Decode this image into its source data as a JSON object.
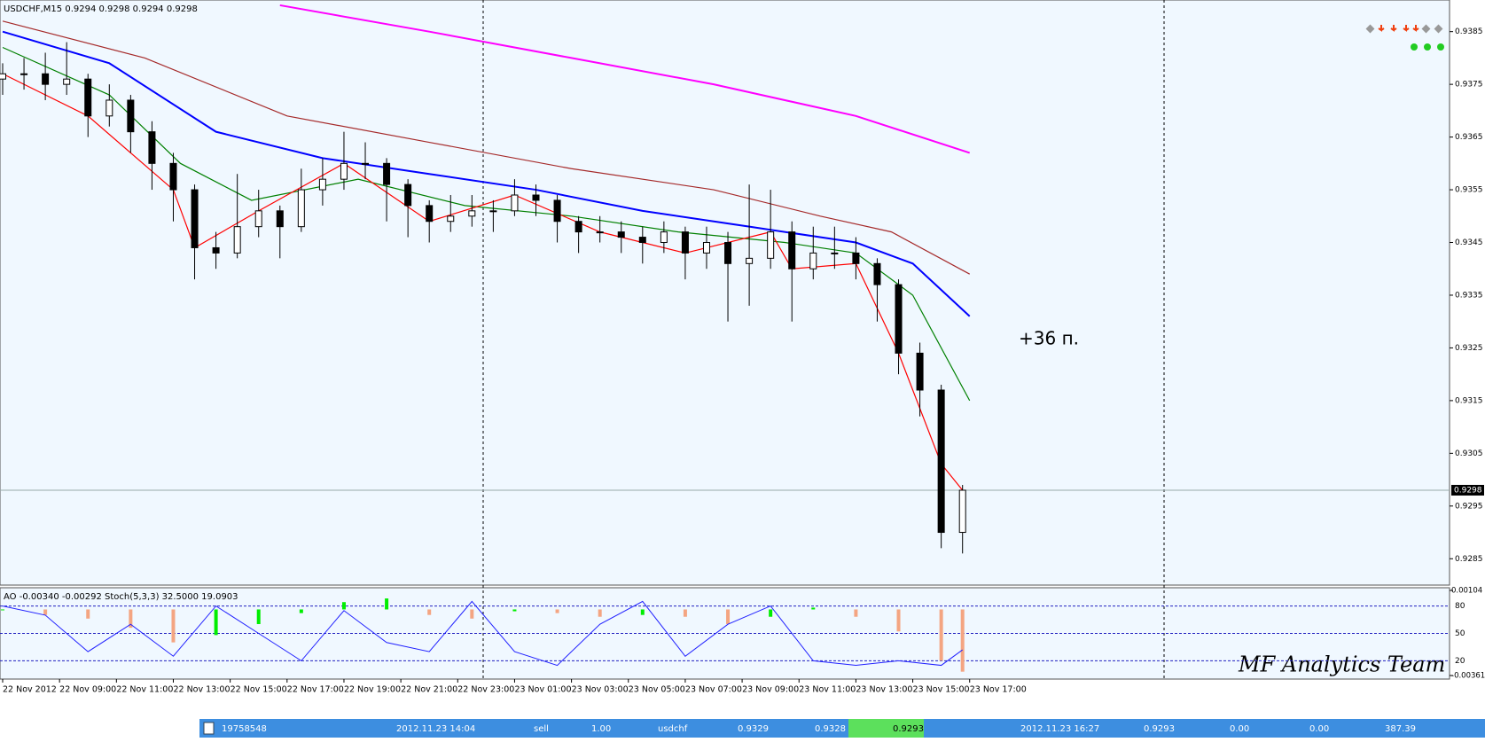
{
  "chart_data": [
    {
      "type": "candlestick",
      "title": "USDCHF,M15  0.9294 0.9298 0.9294 0.9298",
      "x": [
        "22 Nov 07:00",
        "22 Nov 07:45",
        "22 Nov 08:30",
        "22 Nov 09:15",
        "22 Nov 10:00",
        "22 Nov 10:45",
        "22 Nov 11:30",
        "22 Nov 12:15",
        "22 Nov 13:00",
        "22 Nov 13:45",
        "22 Nov 14:30",
        "22 Nov 15:15",
        "22 Nov 16:00",
        "22 Nov 16:45",
        "22 Nov 17:30",
        "22 Nov 18:15",
        "22 Nov 19:00",
        "22 Nov 19:45",
        "22 Nov 20:30",
        "22 Nov 21:15",
        "22 Nov 22:00",
        "22 Nov 22:45",
        "22 Nov 23:30",
        "23 Nov 00:15",
        "23 Nov 01:00",
        "23 Nov 01:45",
        "23 Nov 02:30",
        "23 Nov 03:15",
        "23 Nov 04:00",
        "23 Nov 04:45",
        "23 Nov 05:30",
        "23 Nov 06:15",
        "23 Nov 07:00",
        "23 Nov 07:45",
        "23 Nov 08:30",
        "23 Nov 09:15",
        "23 Nov 10:00",
        "23 Nov 10:45",
        "23 Nov 11:30",
        "23 Nov 12:15",
        "23 Nov 13:00",
        "23 Nov 13:45",
        "23 Nov 14:30",
        "23 Nov 15:15",
        "23 Nov 16:00",
        "23 Nov 16:45"
      ],
      "open": [
        0.9376,
        0.9377,
        0.9377,
        0.9375,
        0.9376,
        0.9369,
        0.9372,
        0.9366,
        0.936,
        0.9355,
        0.9344,
        0.9343,
        0.9348,
        0.9351,
        0.9348,
        0.9355,
        0.9357,
        0.936,
        0.936,
        0.9356,
        0.9352,
        0.9349,
        0.935,
        0.9351,
        0.9351,
        0.9354,
        0.9353,
        0.9349,
        0.9347,
        0.9347,
        0.9346,
        0.9345,
        0.9347,
        0.9343,
        0.9345,
        0.9341,
        0.9342,
        0.9347,
        0.934,
        0.9343,
        0.9343,
        0.9341,
        0.9337,
        0.9324,
        0.9317,
        0.929
      ],
      "high": [
        0.9379,
        0.938,
        0.9381,
        0.9383,
        0.9377,
        0.9375,
        0.9373,
        0.9368,
        0.9362,
        0.9356,
        0.9347,
        0.9358,
        0.9355,
        0.9352,
        0.9359,
        0.9361,
        0.9366,
        0.9364,
        0.9361,
        0.9357,
        0.9353,
        0.9354,
        0.9354,
        0.9353,
        0.9357,
        0.9356,
        0.9354,
        0.935,
        0.935,
        0.9349,
        0.9348,
        0.9349,
        0.9348,
        0.9348,
        0.9347,
        0.9356,
        0.9355,
        0.9349,
        0.9348,
        0.9348,
        0.9346,
        0.9342,
        0.9338,
        0.9326,
        0.9318,
        0.9299
      ],
      "low": [
        0.9373,
        0.9374,
        0.9372,
        0.9373,
        0.9365,
        0.9367,
        0.9362,
        0.9355,
        0.9349,
        0.9338,
        0.934,
        0.9342,
        0.9346,
        0.9342,
        0.9347,
        0.9352,
        0.9355,
        0.9357,
        0.9349,
        0.9346,
        0.9345,
        0.9347,
        0.9348,
        0.9347,
        0.935,
        0.935,
        0.9345,
        0.9343,
        0.9345,
        0.9343,
        0.9341,
        0.9343,
        0.9338,
        0.934,
        0.933,
        0.9333,
        0.934,
        0.933,
        0.9338,
        0.934,
        0.9338,
        0.933,
        0.932,
        0.9312,
        0.9287,
        0.9286
      ],
      "close": [
        0.9377,
        0.9377,
        0.9375,
        0.9376,
        0.9369,
        0.9372,
        0.9366,
        0.936,
        0.9355,
        0.9344,
        0.9343,
        0.9348,
        0.9351,
        0.9348,
        0.9355,
        0.9357,
        0.936,
        0.936,
        0.9356,
        0.9352,
        0.9349,
        0.935,
        0.9351,
        0.9351,
        0.9354,
        0.9353,
        0.9349,
        0.9347,
        0.9347,
        0.9346,
        0.9345,
        0.9347,
        0.9343,
        0.9345,
        0.9341,
        0.9342,
        0.9347,
        0.934,
        0.9343,
        0.9343,
        0.9341,
        0.9337,
        0.9324,
        0.9317,
        0.929,
        0.9298
      ],
      "up_color": "#ffffff",
      "down_color": "#000000",
      "last_price": 0.9298,
      "lines": [
        {
          "color": "#ff00ff",
          "x": [
            "22 Nov 16:45",
            "22 Nov 22:00",
            "23 Nov 03:00",
            "23 Nov 08:00",
            "23 Nov 13:00",
            "23 Nov 17:00"
          ],
          "values": [
            0.939,
            0.9385,
            0.938,
            0.9375,
            0.9369,
            0.9362
          ]
        },
        {
          "color": "#a52a2a",
          "x": [
            "22 Nov 07:00",
            "22 Nov 12:00",
            "22 Nov 17:00",
            "22 Nov 22:00",
            "23 Nov 03:00",
            "23 Nov 08:00",
            "23 Nov 11:45",
            "23 Nov 14:15",
            "23 Nov 17:00"
          ],
          "values": [
            0.9387,
            0.938,
            0.9369,
            0.9364,
            0.9359,
            0.9355,
            0.935,
            0.9347,
            0.9339
          ]
        },
        {
          "color": "#0000ff",
          "x": [
            "22 Nov 07:00",
            "22 Nov 10:45",
            "22 Nov 14:30",
            "22 Nov 18:15",
            "22 Nov 22:00",
            "23 Nov 01:45",
            "23 Nov 05:30",
            "23 Nov 09:15",
            "23 Nov 13:00",
            "23 Nov 15:00",
            "23 Nov 17:00"
          ],
          "values": [
            0.9385,
            0.9379,
            0.9366,
            0.9361,
            0.9358,
            0.9355,
            0.9351,
            0.9348,
            0.9345,
            0.9341,
            0.9331
          ]
        },
        {
          "color": "#008000",
          "x": [
            "22 Nov 07:00",
            "22 Nov 10:45",
            "22 Nov 13:15",
            "22 Nov 15:45",
            "22 Nov 19:30",
            "22 Nov 23:15",
            "23 Nov 03:00",
            "23 Nov 06:45",
            "23 Nov 10:30",
            "23 Nov 13:00",
            "23 Nov 15:00",
            "23 Nov 17:00"
          ],
          "values": [
            0.9382,
            0.9373,
            0.936,
            0.9353,
            0.9357,
            0.9352,
            0.935,
            0.9347,
            0.9345,
            0.9343,
            0.9335,
            0.9315
          ]
        },
        {
          "color": "#ff0000",
          "x": [
            "22 Nov 07:00",
            "22 Nov 10:00",
            "22 Nov 13:00",
            "22 Nov 13:45",
            "22 Nov 16:00",
            "22 Nov 19:00",
            "22 Nov 22:00",
            "23 Nov 01:00",
            "23 Nov 04:00",
            "23 Nov 07:00",
            "23 Nov 10:00",
            "23 Nov 10:45",
            "23 Nov 13:00",
            "23 Nov 14:30",
            "23 Nov 16:00",
            "23 Nov 16:45"
          ],
          "values": [
            0.9377,
            0.9369,
            0.9355,
            0.9344,
            0.9351,
            0.936,
            0.9349,
            0.9354,
            0.9347,
            0.9343,
            0.9347,
            0.934,
            0.9341,
            0.9324,
            0.9303,
            0.9298
          ]
        }
      ],
      "ylim": [
        0.928,
        0.9391
      ],
      "yticks": [
        0.9385,
        0.9375,
        0.9365,
        0.9355,
        0.9345,
        0.9335,
        0.9325,
        0.9315,
        0.9305,
        0.9295,
        0.9285
      ],
      "xticks": [
        "22 Nov 2012",
        "22 Nov 09:00",
        "22 Nov 11:00",
        "22 Nov 13:00",
        "22 Nov 15:00",
        "22 Nov 17:00",
        "22 Nov 19:00",
        "22 Nov 21:00",
        "22 Nov 23:00",
        "23 Nov 01:00",
        "23 Nov 03:00",
        "23 Nov 05:00",
        "23 Nov 07:00",
        "23 Nov 09:00",
        "23 Nov 11:00",
        "23 Nov 13:00",
        "23 Nov 15:00",
        "23 Nov 17:00"
      ],
      "annotations": [
        {
          "text": "+36 п.",
          "color": "#ff0000"
        }
      ]
    },
    {
      "type": "oscillator",
      "title": "AO -0.00340 -0.00292  Stoch(5,3,3) 32.5000 19.0903",
      "x": [
        "22 Nov 07:00",
        "22 Nov 08:30",
        "22 Nov 10:00",
        "22 Nov 11:30",
        "22 Nov 13:00",
        "22 Nov 14:30",
        "22 Nov 16:00",
        "22 Nov 17:30",
        "22 Nov 19:00",
        "22 Nov 20:30",
        "22 Nov 22:00",
        "22 Nov 23:30",
        "23 Nov 01:00",
        "23 Nov 02:30",
        "23 Nov 04:00",
        "23 Nov 05:30",
        "23 Nov 07:00",
        "23 Nov 08:30",
        "23 Nov 10:00",
        "23 Nov 11:30",
        "23 Nov 13:00",
        "23 Nov 14:30",
        "23 Nov 16:00",
        "23 Nov 16:45"
      ],
      "ao": {
        "values": [
          0.0,
          -0.0003,
          -0.0005,
          -0.001,
          -0.0018,
          -0.0014,
          -0.0008,
          -0.0002,
          0.0004,
          0.0006,
          -0.0003,
          -0.0005,
          -0.0001,
          -0.0002,
          -0.0004,
          -0.0003,
          -0.0004,
          -0.0008,
          -0.0004,
          0.0001,
          -0.0004,
          -0.0012,
          -0.0028,
          -0.0034
        ],
        "up_color": "#00ee00",
        "down_color": "#f4a582"
      },
      "stoch": {
        "values": [
          80,
          70,
          30,
          60,
          25,
          80,
          50,
          20,
          75,
          40,
          30,
          85,
          30,
          15,
          60,
          85,
          25,
          60,
          80,
          20,
          15,
          20,
          15,
          32
        ],
        "color": "#2020ff"
      },
      "ylim": [
        0,
        100
      ],
      "yticks": [
        80,
        50,
        20
      ],
      "y2lim": [
        -0.00361,
        0.00104
      ],
      "y2ticks": [
        0.00104,
        -0.00361
      ],
      "watermark": "MF Analytics Team"
    }
  ],
  "trade_row": [
    "19758548",
    "2012.11.23 14:04",
    "sell",
    "1.00",
    "usdchf",
    "0.9329",
    "0.9328",
    "0.9293",
    "2012.11.23 16:27",
    "0.9293",
    "0.00",
    "0.00",
    "387.39"
  ]
}
